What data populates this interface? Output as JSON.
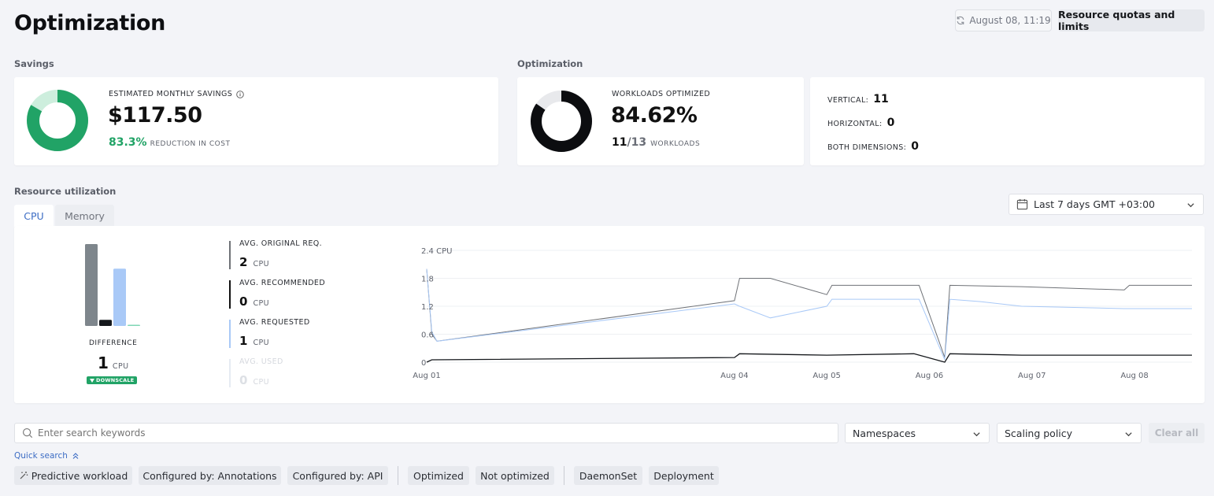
{
  "page": {
    "title": "Optimization"
  },
  "header": {
    "refresh_time": "August 08, 11:19",
    "quota_button": "Resource quotas and limits"
  },
  "savings": {
    "section_label": "Savings",
    "label": "ESTIMATED MONTHLY SAVINGS",
    "value": "$117.50",
    "reduction_pct": "83.3%",
    "reduction_label": "REDUCTION IN COST",
    "donut_fraction": 0.833,
    "colors": {
      "main": "#21a366",
      "rest": "#cdeedd"
    }
  },
  "optimization": {
    "section_label": "Optimization",
    "label": "WORKLOADS OPTIMIZED",
    "value": "84.62%",
    "count": "11",
    "total": "/13",
    "count_label": "WORKLOADS",
    "donut_fraction": 0.8462,
    "vertical_label": "VERTICAL:",
    "vertical": "11",
    "horizontal_label": "HORIZONTAL:",
    "horizontal": "0",
    "both_label": "BOTH DIMENSIONS:",
    "both": "0"
  },
  "utilization": {
    "section_label": "Resource utilization",
    "tabs": [
      "CPU",
      "Memory"
    ],
    "range": "Last 7 days GMT +03:00",
    "difference_label": "DIFFERENCE",
    "difference_value": "1",
    "difference_unit": "CPU",
    "downscale": "DOWNSCALE",
    "stats": [
      {
        "label": "AVG. ORIGINAL REQ.",
        "value": "2",
        "unit": "CPU",
        "color": "#6f7277"
      },
      {
        "label": "AVG. RECOMMENDED",
        "value": "0",
        "unit": "CPU",
        "color": "#111111"
      },
      {
        "label": "AVG. REQUESTED",
        "value": "1",
        "unit": "CPU",
        "color": "#a9c9f7"
      },
      {
        "label": "AVG. USED",
        "value": "0",
        "unit": "CPU",
        "color": "#dfe6ef"
      }
    ],
    "mini_bars": [
      {
        "name": "original",
        "value": 2,
        "color": "#7e868c"
      },
      {
        "name": "recommended",
        "value": 0.15,
        "color": "#15181c"
      },
      {
        "name": "requested",
        "value": 1.4,
        "color": "#a9c9f7"
      },
      {
        "name": "used",
        "value": 0.02,
        "color": "#7fd6b4"
      }
    ]
  },
  "chart_data": {
    "type": "line",
    "y_unit_label": "2.4 CPU",
    "y_ticks": [
      "1.8",
      "1.2",
      "0.6",
      "0"
    ],
    "ylim": [
      0,
      2.4
    ],
    "xlim": [
      0,
      7.46
    ],
    "x_ticks": [
      {
        "label": "Aug 01",
        "x": 0
      },
      {
        "label": "Aug 04",
        "x": 3
      },
      {
        "label": "Aug 05",
        "x": 3.9
      },
      {
        "label": "Aug 06",
        "x": 4.9
      },
      {
        "label": "Aug 07",
        "x": 5.9
      },
      {
        "label": "Aug 08",
        "x": 6.9
      }
    ],
    "grid": true,
    "series": [
      {
        "key": "original",
        "color": "#6f7277",
        "points": [
          [
            0,
            2.0
          ],
          [
            0.05,
            0.6
          ],
          [
            0.1,
            0.45
          ],
          [
            3.0,
            1.32
          ],
          [
            3.05,
            1.8
          ],
          [
            3.35,
            1.8
          ],
          [
            3.9,
            1.45
          ],
          [
            3.95,
            1.65
          ],
          [
            4.2,
            1.65
          ],
          [
            4.75,
            1.65
          ],
          [
            4.8,
            1.65
          ],
          [
            5.05,
            0.1
          ],
          [
            5.1,
            1.65
          ],
          [
            5.8,
            1.62
          ],
          [
            6.8,
            1.55
          ],
          [
            6.85,
            1.65
          ],
          [
            7.46,
            1.65
          ]
        ]
      },
      {
        "key": "requested",
        "color": "#a9c9f7",
        "points": [
          [
            0,
            2.0
          ],
          [
            0.05,
            0.65
          ],
          [
            0.1,
            0.45
          ],
          [
            3.0,
            1.25
          ],
          [
            3.05,
            1.2
          ],
          [
            3.35,
            0.95
          ],
          [
            3.9,
            1.2
          ],
          [
            3.95,
            1.35
          ],
          [
            4.2,
            1.35
          ],
          [
            4.75,
            1.35
          ],
          [
            4.8,
            1.35
          ],
          [
            5.05,
            0.05
          ],
          [
            5.1,
            1.35
          ],
          [
            5.4,
            1.3
          ],
          [
            5.8,
            1.2
          ],
          [
            6.8,
            1.15
          ],
          [
            6.85,
            1.15
          ],
          [
            7.46,
            1.15
          ]
        ]
      },
      {
        "key": "recommended",
        "color": "#15181c",
        "points": [
          [
            0,
            0
          ],
          [
            0.05,
            0.05
          ],
          [
            3.0,
            0.1
          ],
          [
            3.05,
            0.18
          ],
          [
            3.9,
            0.15
          ],
          [
            4.75,
            0.18
          ],
          [
            5.05,
            0.0
          ],
          [
            5.1,
            0.18
          ],
          [
            5.8,
            0.15
          ],
          [
            7.46,
            0.15
          ]
        ]
      }
    ]
  },
  "filters": {
    "search_placeholder": "Enter search keywords",
    "namespaces": "Namespaces",
    "scaling_policy": "Scaling policy",
    "clear_all": "Clear all",
    "quick_search": "Quick search",
    "chips": [
      "Predictive workload",
      "Configured by: Annotations",
      "Configured by: API",
      "Optimized",
      "Not optimized",
      "DaemonSet",
      "Deployment"
    ]
  }
}
